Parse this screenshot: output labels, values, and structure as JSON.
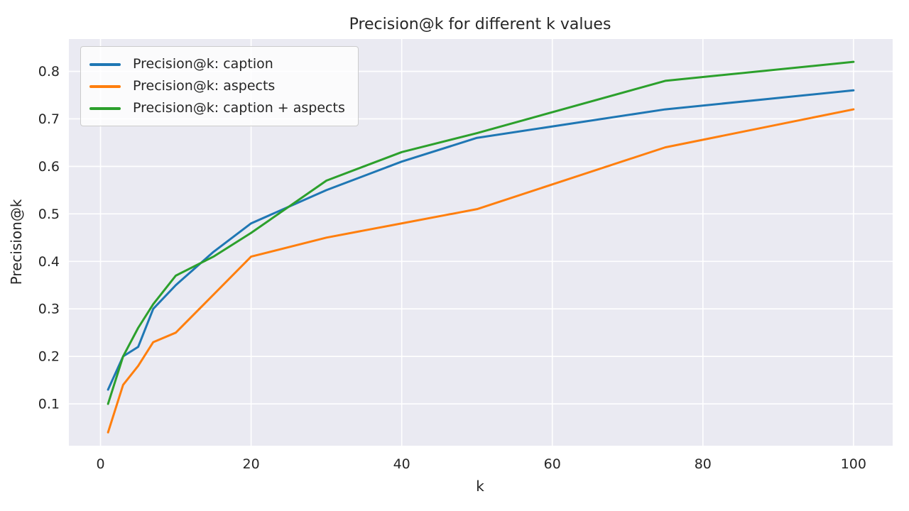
{
  "figure": {
    "background": "#ffffff"
  },
  "chart_data": {
    "type": "line",
    "title": "Precision@k for different k values",
    "xlabel": "k",
    "ylabel": "Precision@k",
    "x": [
      1,
      3,
      5,
      7,
      10,
      15,
      20,
      30,
      40,
      50,
      75,
      100
    ],
    "series": [
      {
        "name": "Precision@k: caption",
        "color": "#1f77b4",
        "values": [
          0.13,
          0.2,
          0.22,
          0.3,
          0.35,
          0.42,
          0.48,
          0.55,
          0.61,
          0.66,
          0.72,
          0.76
        ]
      },
      {
        "name": "Precision@k: aspects",
        "color": "#ff7f0e",
        "values": [
          0.04,
          0.14,
          0.18,
          0.23,
          0.25,
          0.33,
          0.41,
          0.45,
          0.48,
          0.51,
          0.64,
          0.72
        ]
      },
      {
        "name": "Precision@k: caption + aspects",
        "color": "#2ca02c",
        "values": [
          0.1,
          0.2,
          0.26,
          0.31,
          0.37,
          0.41,
          0.46,
          0.57,
          0.63,
          0.67,
          0.78,
          0.82
        ]
      }
    ],
    "x_ticks": [
      0,
      20,
      40,
      60,
      80,
      100
    ],
    "y_ticks": [
      0.1,
      0.2,
      0.3,
      0.4,
      0.5,
      0.6,
      0.7,
      0.8
    ],
    "xlim": [
      -4.2,
      105.2
    ],
    "ylim": [
      0.012,
      0.868
    ],
    "grid": true,
    "grid_color": "#ffffff",
    "plot_bg": "#eaeaf2",
    "text_color": "#262626",
    "legend_position": "upper left"
  }
}
